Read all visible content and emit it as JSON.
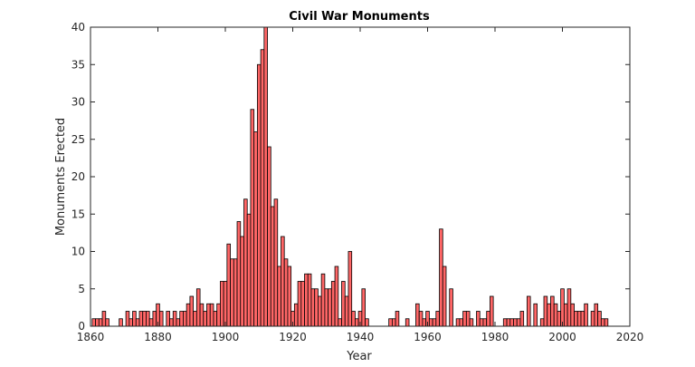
{
  "chart_data": {
    "type": "bar",
    "title": "Civil War Monuments",
    "xlabel": "Year",
    "ylabel": "Monuments Erected",
    "xlim": [
      1860,
      2020
    ],
    "ylim": [
      0,
      40
    ],
    "xticks": [
      1860,
      1880,
      1900,
      1920,
      1940,
      1960,
      1980,
      2000,
      2020
    ],
    "yticks": [
      0,
      5,
      10,
      15,
      20,
      25,
      30,
      35,
      40
    ],
    "grid": false,
    "bar_color": "#ff6666",
    "edge_color": "#000000",
    "x": [
      1861,
      1862,
      1863,
      1864,
      1865,
      1866,
      1869,
      1871,
      1872,
      1873,
      1874,
      1875,
      1876,
      1877,
      1878,
      1879,
      1880,
      1881,
      1883,
      1884,
      1885,
      1886,
      1887,
      1888,
      1889,
      1890,
      1891,
      1892,
      1893,
      1894,
      1895,
      1896,
      1897,
      1898,
      1899,
      1900,
      1901,
      1902,
      1903,
      1904,
      1905,
      1906,
      1907,
      1908,
      1909,
      1910,
      1911,
      1912,
      1913,
      1914,
      1915,
      1916,
      1917,
      1918,
      1919,
      1920,
      1921,
      1922,
      1923,
      1924,
      1925,
      1926,
      1927,
      1928,
      1929,
      1930,
      1931,
      1932,
      1933,
      1934,
      1935,
      1936,
      1937,
      1938,
      1939,
      1940,
      1941,
      1942,
      1949,
      1950,
      1951,
      1954,
      1957,
      1958,
      1959,
      1960,
      1961,
      1962,
      1963,
      1964,
      1965,
      1967,
      1969,
      1970,
      1971,
      1972,
      1973,
      1975,
      1976,
      1977,
      1978,
      1979,
      1983,
      1984,
      1985,
      1986,
      1987,
      1988,
      1990,
      1992,
      1994,
      1995,
      1996,
      1997,
      1998,
      1999,
      2000,
      2001,
      2002,
      2003,
      2004,
      2005,
      2006,
      2007,
      2009,
      2010,
      2011,
      2012,
      2013
    ],
    "values": [
      1,
      1,
      1,
      2,
      1,
      0,
      1,
      2,
      1,
      2,
      1,
      2,
      2,
      2,
      1,
      2,
      3,
      2,
      2,
      1,
      2,
      1,
      2,
      2,
      3,
      4,
      2,
      5,
      3,
      2,
      3,
      3,
      2,
      3,
      6,
      6,
      11,
      9,
      9,
      14,
      12,
      17,
      15,
      29,
      26,
      35,
      37,
      40,
      24,
      16,
      17,
      8,
      12,
      9,
      8,
      2,
      3,
      6,
      6,
      7,
      7,
      5,
      5,
      4,
      7,
      5,
      5,
      6,
      8,
      1,
      6,
      4,
      10,
      2,
      1,
      2,
      5,
      1,
      1,
      1,
      2,
      1,
      3,
      2,
      1,
      2,
      1,
      1,
      2,
      13,
      8,
      5,
      1,
      1,
      2,
      2,
      1,
      2,
      1,
      1,
      2,
      4,
      1,
      1,
      1,
      1,
      1,
      2,
      4,
      3,
      1,
      4,
      3,
      4,
      3,
      2,
      5,
      3,
      5,
      3,
      2,
      2,
      2,
      3,
      2,
      3,
      2,
      1,
      1
    ]
  }
}
